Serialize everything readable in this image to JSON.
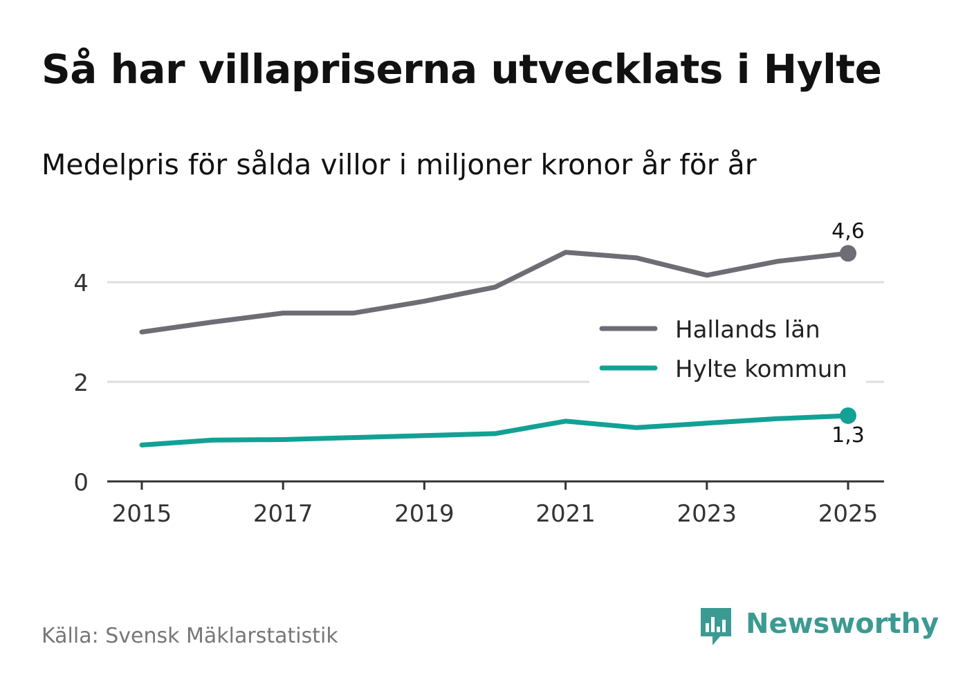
{
  "title": "Så har villapriserna utvecklats i Hylte",
  "subtitle": "Medelpris för sålda villor i miljoner kronor år för år",
  "source": "Källa: Svensk Mäklarstatistik",
  "brand": {
    "name": "Newsworthy",
    "icon": "newsworthy-logo-icon",
    "color": "#3b9a91"
  },
  "chart_data": {
    "type": "line",
    "title": "Så har villapriserna utvecklats i Hylte",
    "subtitle": "Medelpris för sålda villor i miljoner kronor år för år",
    "xlabel": "",
    "ylabel": "",
    "x": [
      2015,
      2016,
      2017,
      2018,
      2019,
      2020,
      2021,
      2022,
      2023,
      2024,
      2025
    ],
    "xlim": [
      2014.5,
      2025.5
    ],
    "ylim": [
      0,
      5
    ],
    "x_ticks": [
      {
        "value": 2015,
        "label": "2015"
      },
      {
        "value": 2017,
        "label": "2017"
      },
      {
        "value": 2019,
        "label": "2019"
      },
      {
        "value": 2021,
        "label": "2021"
      },
      {
        "value": 2023,
        "label": "2023"
      },
      {
        "value": 2025,
        "label": "2025"
      }
    ],
    "y_ticks": [
      {
        "value": 0,
        "label": "0"
      },
      {
        "value": 2,
        "label": "2"
      },
      {
        "value": 4,
        "label": "4"
      }
    ],
    "grid": true,
    "legend_position": "right",
    "series": [
      {
        "name": "Hallands län",
        "color": "#6e6d75",
        "values": [
          3.0,
          3.2,
          3.38,
          3.38,
          3.62,
          3.9,
          4.6,
          4.49,
          4.14,
          4.42,
          4.58
        ],
        "end_label": "4,6",
        "end_label_position": "above"
      },
      {
        "name": "Hylte kommun",
        "color": "#12a194",
        "values": [
          0.73,
          0.83,
          0.84,
          0.88,
          0.92,
          0.96,
          1.21,
          1.08,
          1.17,
          1.26,
          1.32
        ],
        "end_label": "1,3",
        "end_label_position": "below"
      }
    ]
  }
}
